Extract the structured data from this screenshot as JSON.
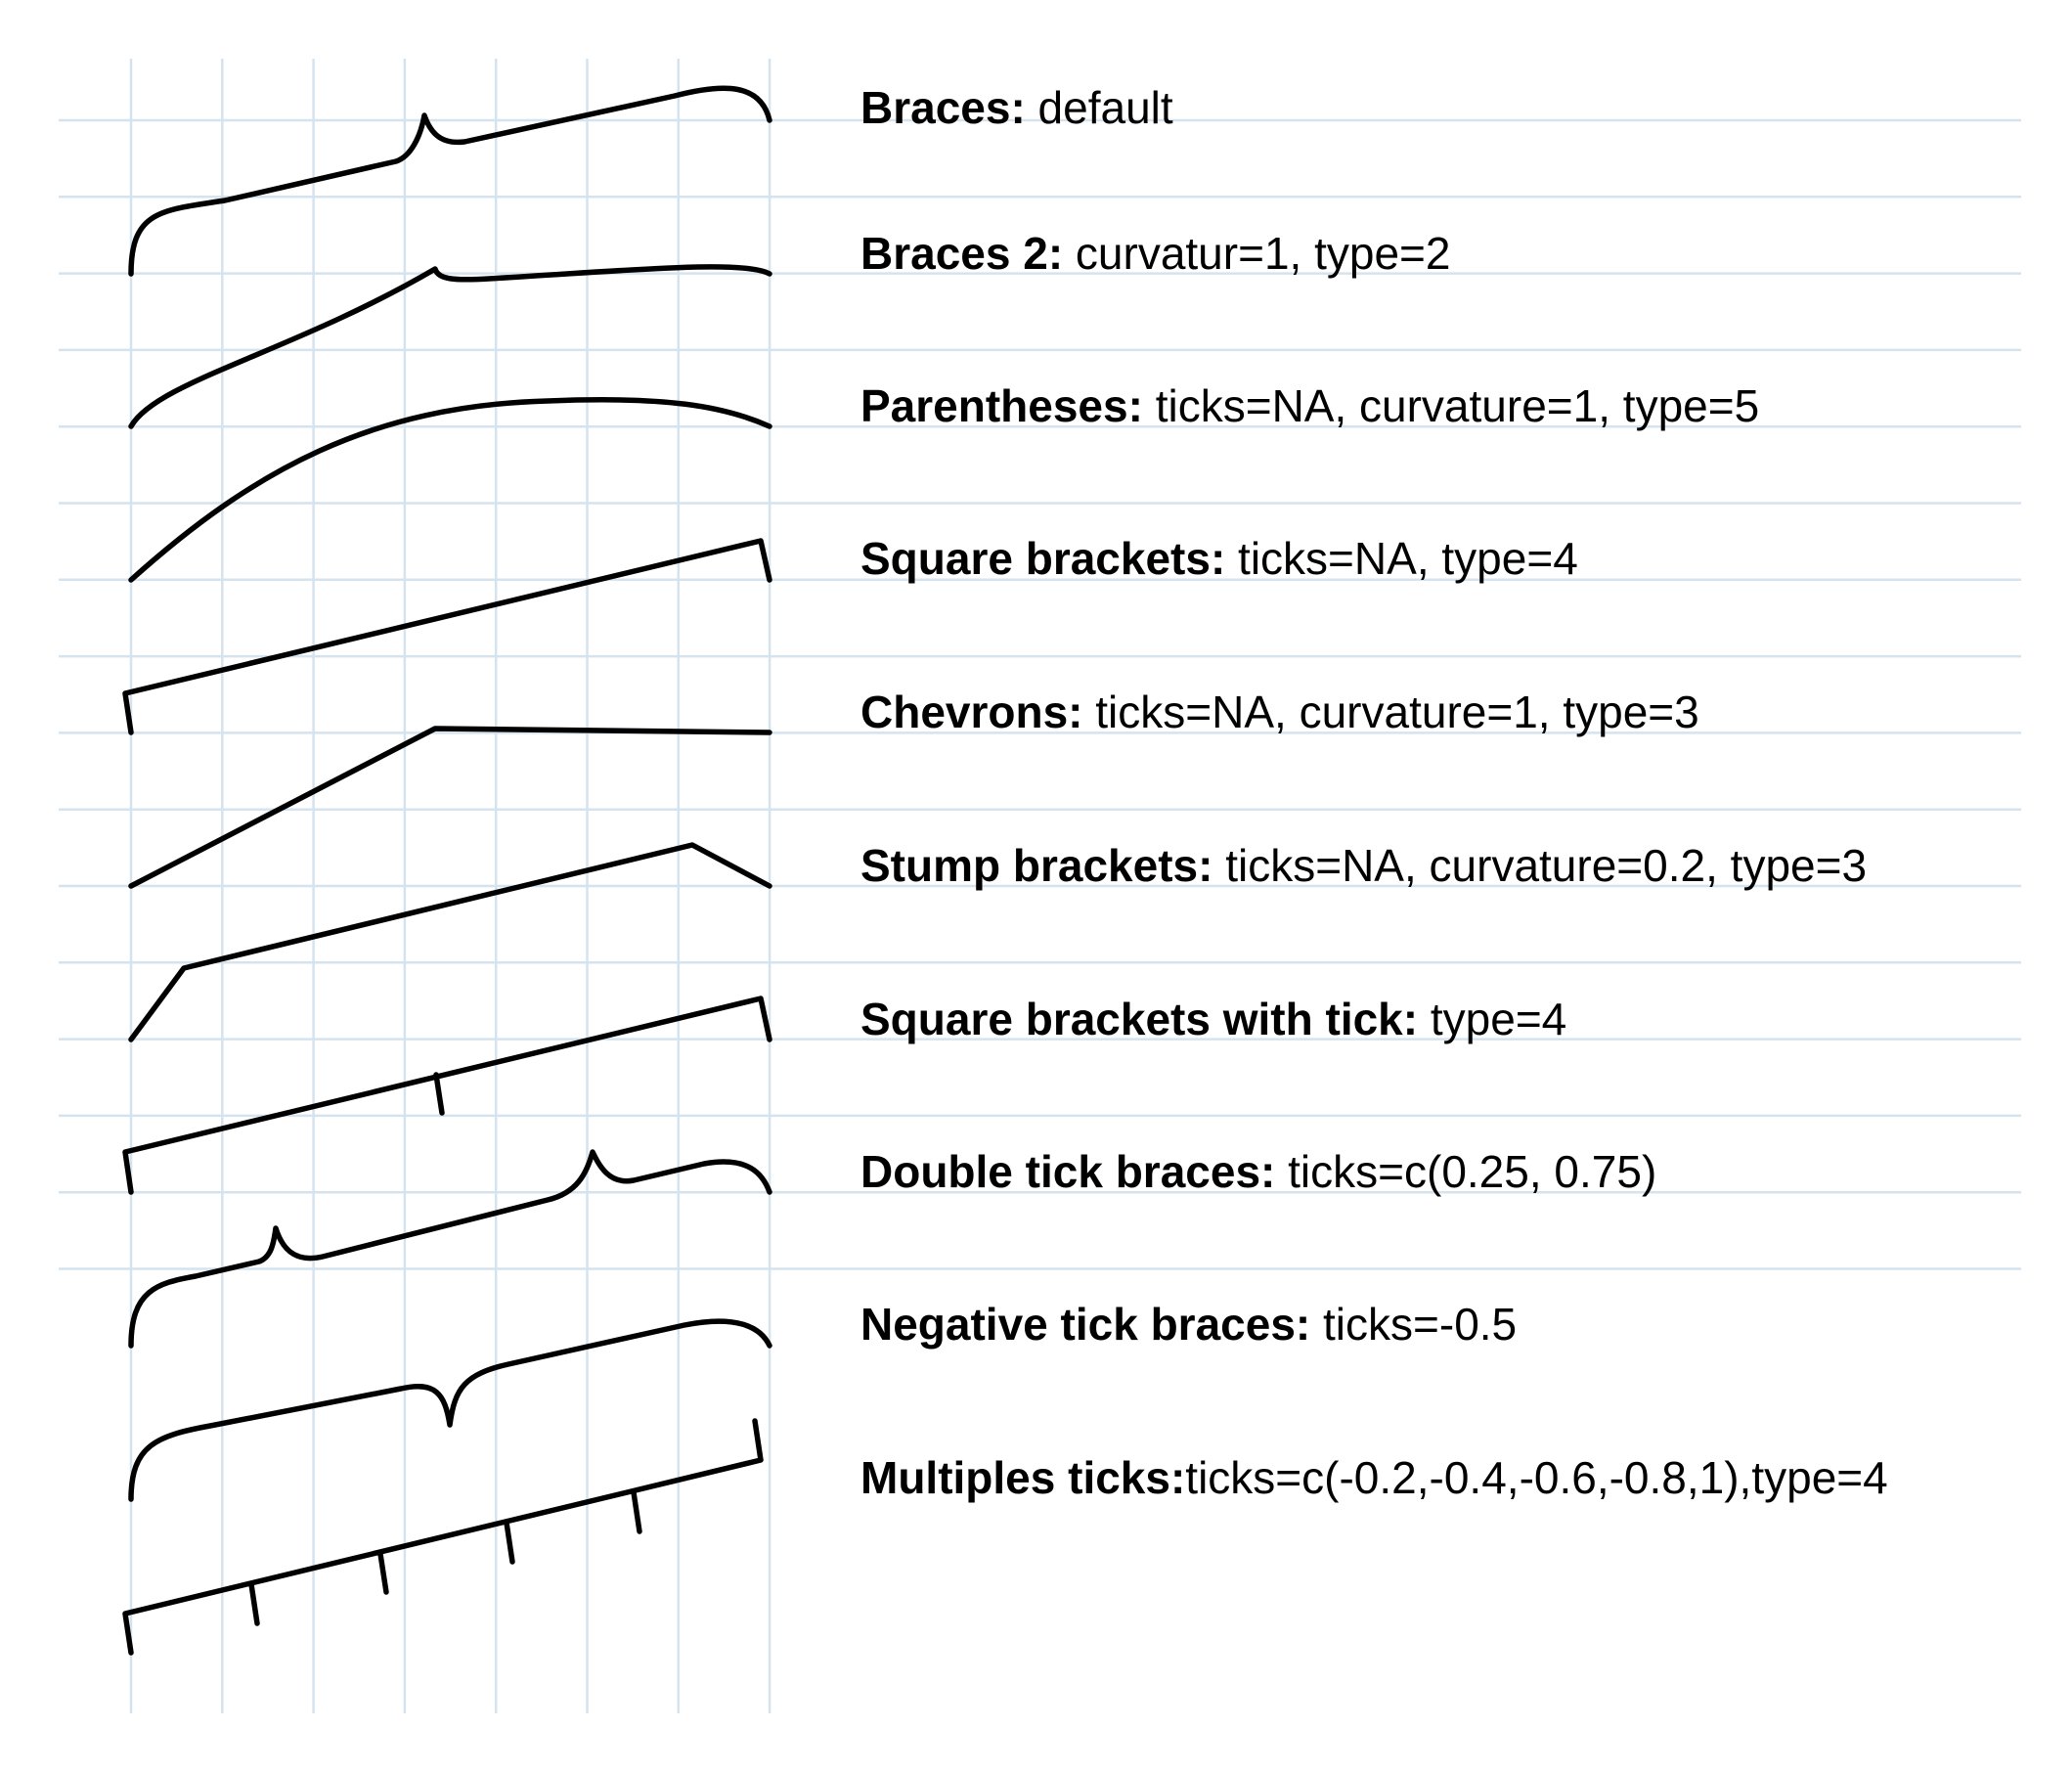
{
  "colors": {
    "grid": "#d5e3ef",
    "stroke": "#000000",
    "background": "#ffffff"
  },
  "examples": [
    {
      "name": "Braces:",
      "params": " default"
    },
    {
      "name": "Braces 2:",
      "params": " curvatur=1, type=2"
    },
    {
      "name": "Parentheses:",
      "params": " ticks=NA, curvature=1, type=5"
    },
    {
      "name": "Square brackets:",
      "params": " ticks=NA, type=4"
    },
    {
      "name": "Chevrons:",
      "params": " ticks=NA, curvature=1, type=3"
    },
    {
      "name": "Stump brackets:",
      "params": " ticks=NA, curvature=0.2, type=3"
    },
    {
      "name": "Square brackets with tick:",
      "params": " type=4"
    },
    {
      "name": "Double tick braces:",
      "params": " ticks=c(0.25, 0.75)"
    },
    {
      "name": "Negative tick braces:",
      "params": " ticks=-0.5"
    },
    {
      "name": "Multiples ticks:",
      "params": "ticks=c(-0.2,-0.4,-0.6,-0.8,1),type=4"
    }
  ]
}
